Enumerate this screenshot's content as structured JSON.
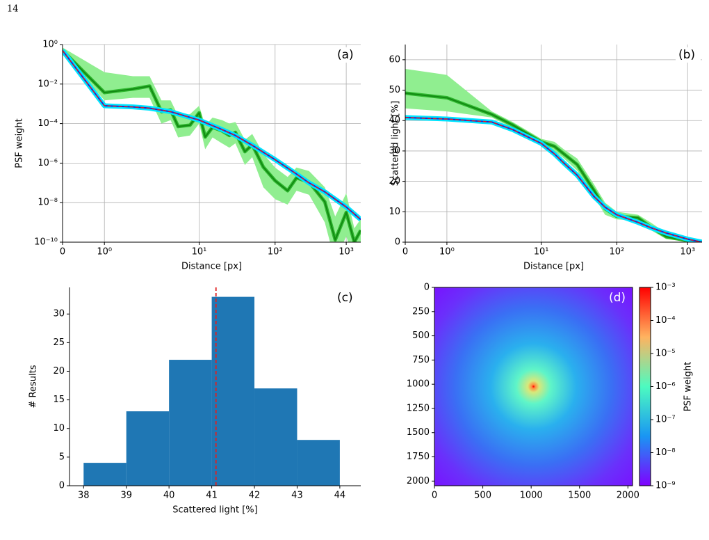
{
  "page_number": "14",
  "chart_data": [
    {
      "type": "line",
      "label": "(a)",
      "xlabel": "Distance [px]",
      "ylabel": "PSF weight",
      "xscale": "symlog",
      "yscale": "log",
      "grid": true,
      "xlim": [
        0,
        1600
      ],
      "ylim": [
        1e-10,
        1
      ],
      "xticks": [
        0,
        {
          "value": 1,
          "label": "10⁰"
        },
        {
          "value": 10,
          "label": "10¹"
        },
        {
          "value": 100,
          "label": "10²"
        },
        {
          "value": 1000,
          "label": "10³"
        }
      ],
      "yticks": [
        {
          "value": 1e-10,
          "label": "10⁻¹⁰"
        },
        {
          "value": 1e-08,
          "label": "10⁻⁸"
        },
        {
          "value": 1e-06,
          "label": "10⁻⁶"
        },
        {
          "value": 0.0001,
          "label": "10⁻⁴"
        },
        {
          "value": 0.01,
          "label": "10⁻²"
        },
        {
          "value": 1,
          "label": "10⁰"
        }
      ],
      "bands": [
        {
          "color": "#90ee90",
          "x": [
            0,
            1,
            2,
            3,
            4,
            5,
            6,
            8,
            10,
            12,
            15,
            20,
            25,
            30,
            40,
            50,
            70,
            100,
            150,
            200,
            300,
            500,
            700,
            1000,
            1300,
            1600
          ],
          "lower": [
            0.4,
            0.0015,
            0.002,
            0.002,
            0.0001,
            0.00015,
            2e-05,
            2.5e-05,
            0.0001,
            5e-06,
            2e-05,
            1e-05,
            6e-06,
            1e-05,
            8e-07,
            2e-06,
            6e-08,
            1.5e-08,
            8e-09,
            4e-08,
            2.5e-08,
            1e-09,
            1e-11,
            2e-10,
            1e-11,
            4e-11
          ],
          "upper": [
            0.7,
            0.04,
            0.025,
            0.025,
            0.0015,
            0.0015,
            0.00025,
            0.0003,
            0.0008,
            8e-05,
            0.0002,
            0.00015,
            0.0001,
            0.00012,
            1.5e-05,
            3e-05,
            3e-06,
            6e-07,
            2e-07,
            6e-07,
            4e-07,
            6e-08,
            2e-09,
            3e-08,
            5e-10,
            1.5e-09
          ]
        }
      ],
      "series": [
        {
          "color": "#138a13",
          "halo": "#2fb82f",
          "x": [
            0,
            1,
            2,
            3,
            4,
            5,
            6,
            8,
            10,
            12,
            15,
            20,
            25,
            30,
            40,
            50,
            70,
            100,
            150,
            200,
            300,
            500,
            700,
            1000,
            1300,
            1600
          ],
          "values": [
            0.5,
            0.0037,
            0.0056,
            0.0079,
            0.0004,
            0.00049,
            7.1e-05,
            8.3e-05,
            0.00035,
            2.1e-05,
            6.5e-05,
            4.3e-05,
            2.5e-05,
            3.6e-05,
            3.8e-06,
            8.5e-06,
            6.3e-07,
            1.3e-07,
            4e-08,
            1.8e-07,
            1.1e-07,
            1.1e-08,
            1.3e-10,
            3.2e-09,
            1e-10,
            4e-10
          ]
        },
        {
          "color": "#1f1fd0",
          "halo": "#00e5ff",
          "x": [
            0,
            1,
            2,
            3,
            5,
            10,
            20,
            30,
            50,
            100,
            200,
            300,
            500,
            1000,
            1600
          ],
          "values": [
            0.5,
            0.0008,
            0.0007,
            0.0006,
            0.0004,
            0.00015,
            5e-05,
            2.5e-05,
            8e-06,
            1.5e-06,
            2.8e-07,
            1e-07,
            3.5e-08,
            6e-09,
            1.4e-09
          ]
        },
        {
          "color": "#e02020",
          "dashed": true,
          "x": [
            0,
            1,
            2,
            3,
            5,
            10,
            20,
            30,
            50,
            100,
            200,
            300,
            500,
            1000,
            1600
          ],
          "values": [
            0.5,
            0.0008,
            0.0007,
            0.0006,
            0.0004,
            0.00015,
            5e-05,
            2.5e-05,
            8e-06,
            1.5e-06,
            2.8e-07,
            1e-07,
            3.5e-08,
            6e-09,
            1.4e-09
          ]
        }
      ]
    },
    {
      "type": "line",
      "label": "(b)",
      "xlabel": "Distance [px]",
      "ylabel": "Scattered light [%]",
      "xscale": "symlog",
      "yscale": "linear",
      "grid": true,
      "xlim": [
        0,
        1600
      ],
      "ylim": [
        0,
        65
      ],
      "xticks": [
        0,
        {
          "value": 1,
          "label": "10⁰"
        },
        {
          "value": 10,
          "label": "10¹"
        },
        {
          "value": 100,
          "label": "10²"
        },
        {
          "value": 1000,
          "label": "10³"
        }
      ],
      "yticks": [
        0,
        10,
        20,
        30,
        40,
        50,
        60
      ],
      "bands": [
        {
          "color": "#90ee90",
          "x": [
            0,
            1,
            3,
            5,
            10,
            15,
            20,
            30,
            50,
            70,
            100,
            200,
            300,
            500,
            1000,
            1600
          ],
          "lower": [
            44,
            43,
            41,
            37.5,
            32,
            30,
            27.5,
            23.5,
            15,
            9,
            7.5,
            7,
            4,
            1,
            0.2,
            0
          ],
          "upper": [
            57,
            55,
            43,
            39.5,
            34,
            33,
            30.5,
            27.5,
            19,
            13,
            10,
            9,
            6.5,
            3,
            1,
            0.3
          ]
        }
      ],
      "series": [
        {
          "color": "#138a13",
          "halo": "#2fb82f",
          "x": [
            0,
            1,
            3,
            5,
            10,
            15,
            20,
            30,
            50,
            70,
            100,
            200,
            300,
            500,
            1000,
            1600
          ],
          "values": [
            49,
            47.5,
            42,
            38.5,
            33,
            31.5,
            29,
            25.5,
            17,
            11,
            8.5,
            8,
            5,
            1.8,
            0.5,
            0
          ]
        },
        {
          "color": "#1f1fd0",
          "halo": "#00e5ff",
          "x": [
            0,
            1,
            3,
            5,
            10,
            15,
            20,
            30,
            50,
            70,
            100,
            200,
            300,
            500,
            1000,
            1600
          ],
          "values": [
            41,
            40.5,
            39.5,
            37,
            32.5,
            29,
            26,
            22,
            15,
            11.5,
            9,
            6.5,
            4.8,
            3,
            1,
            0
          ]
        },
        {
          "color": "#e02020",
          "dashed": true,
          "x": [
            0,
            1,
            3,
            5,
            10,
            15,
            20,
            30,
            50,
            70,
            100,
            200,
            300,
            500,
            1000,
            1600
          ],
          "values": [
            41,
            40.5,
            39.5,
            37,
            32.5,
            29,
            26,
            22,
            15,
            11.5,
            9,
            6.5,
            4.8,
            3,
            1,
            0
          ]
        }
      ]
    },
    {
      "type": "histogram",
      "label": "(c)",
      "xlabel": "Scattered light [%]",
      "ylabel": "# Results",
      "bins": [
        38,
        39,
        40,
        41,
        42,
        43,
        44
      ],
      "values": [
        4,
        13,
        22,
        33,
        17,
        8
      ],
      "color": "#1f77b4",
      "vline": 41.1,
      "vline_color": "#e02020",
      "xlim": [
        37.67,
        44.49
      ],
      "ylim": [
        0,
        34.65
      ],
      "xticks": [
        38,
        39,
        40,
        41,
        42,
        43,
        44
      ],
      "yticks": [
        0,
        5,
        10,
        15,
        20,
        25,
        30
      ]
    },
    {
      "type": "heatmap",
      "label": "(d)",
      "xlim": [
        0,
        2048
      ],
      "ylim": [
        2048,
        0
      ],
      "xticks": [
        0,
        500,
        1000,
        1500,
        2000
      ],
      "yticks": [
        0,
        250,
        500,
        750,
        1000,
        1250,
        1500,
        1750,
        2000
      ],
      "colorbar": {
        "label": "PSF weight",
        "scale": "log",
        "lim": [
          1e-09,
          0.001
        ],
        "ticks": [
          {
            "value": 1e-09,
            "label": "10⁻⁹"
          },
          {
            "value": 1e-08,
            "label": "10⁻⁸"
          },
          {
            "value": 1e-07,
            "label": "10⁻⁷"
          },
          {
            "value": 1e-06,
            "label": "10⁻⁶"
          },
          {
            "value": 1e-05,
            "label": "10⁻⁵"
          },
          {
            "value": 0.0001,
            "label": "10⁻⁴"
          },
          {
            "value": 0.001,
            "label": "10⁻³"
          }
        ]
      }
    }
  ]
}
